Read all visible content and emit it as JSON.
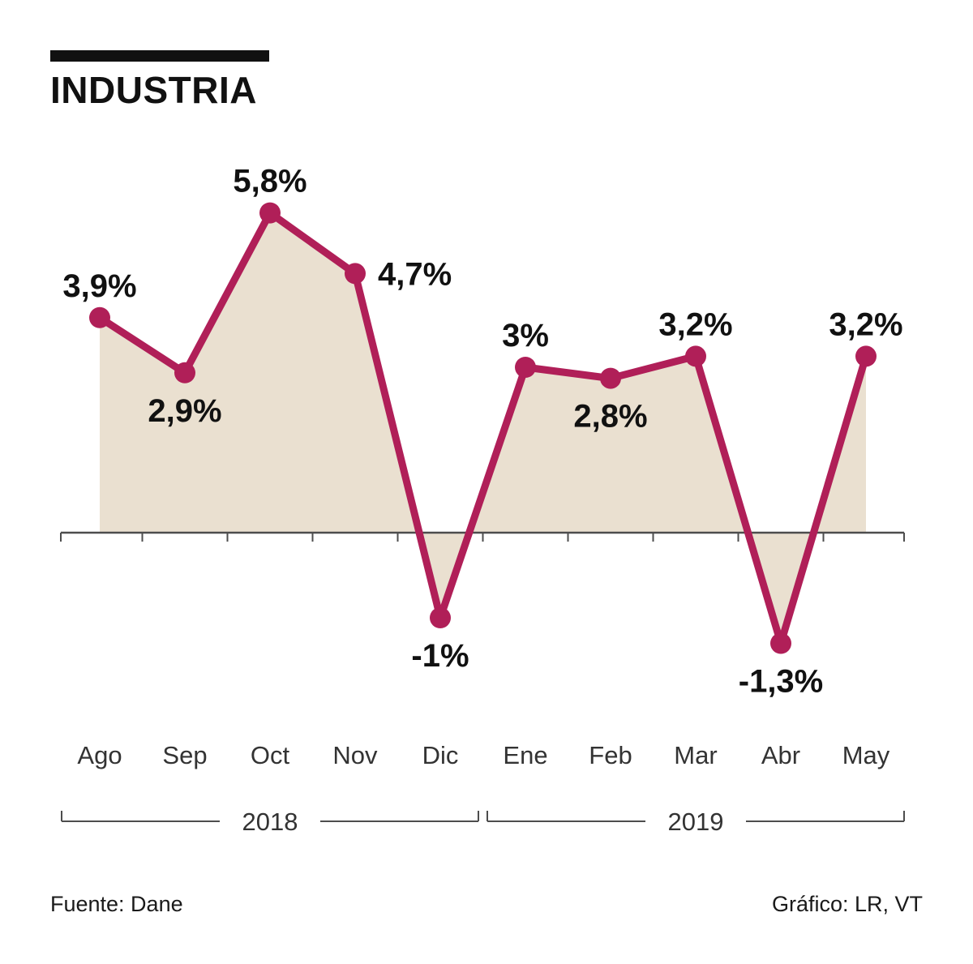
{
  "title": "INDUSTRIA",
  "footer": {
    "source": "Fuente: Dane",
    "credit": "Gráfico: LR, VT"
  },
  "colors": {
    "line": "#b01f58",
    "fill": "#eae0d0",
    "axis": "#4d4d4d",
    "value_text": "#111111",
    "month_text": "#333333"
  },
  "chart_data": {
    "type": "line",
    "title": "INDUSTRIA",
    "categories": [
      "Ago",
      "Sep",
      "Oct",
      "Nov",
      "Dic",
      "Ene",
      "Feb",
      "Mar",
      "Abr",
      "May"
    ],
    "values": [
      3.9,
      2.9,
      5.8,
      4.7,
      -1,
      3,
      2.8,
      3.2,
      -1.3,
      3.2
    ],
    "labels": [
      "3,9%",
      "2,9%",
      "5,8%",
      "4,7%",
      "-1%",
      "3%",
      "2,8%",
      "3,2%",
      "-1,3%",
      "3,2%"
    ],
    "label_placement": [
      "above",
      "below",
      "above",
      "right",
      "below",
      "above",
      "below",
      "above",
      "below",
      "above"
    ],
    "groups": [
      {
        "label": "2018",
        "from": 0,
        "to": 4
      },
      {
        "label": "2019",
        "from": 5,
        "to": 9
      }
    ],
    "ylabel": "",
    "xlabel": "",
    "ylim": [
      -2,
      6.5
    ],
    "grid": false,
    "legend": false,
    "area_fill": true,
    "zero_baseline": true
  }
}
